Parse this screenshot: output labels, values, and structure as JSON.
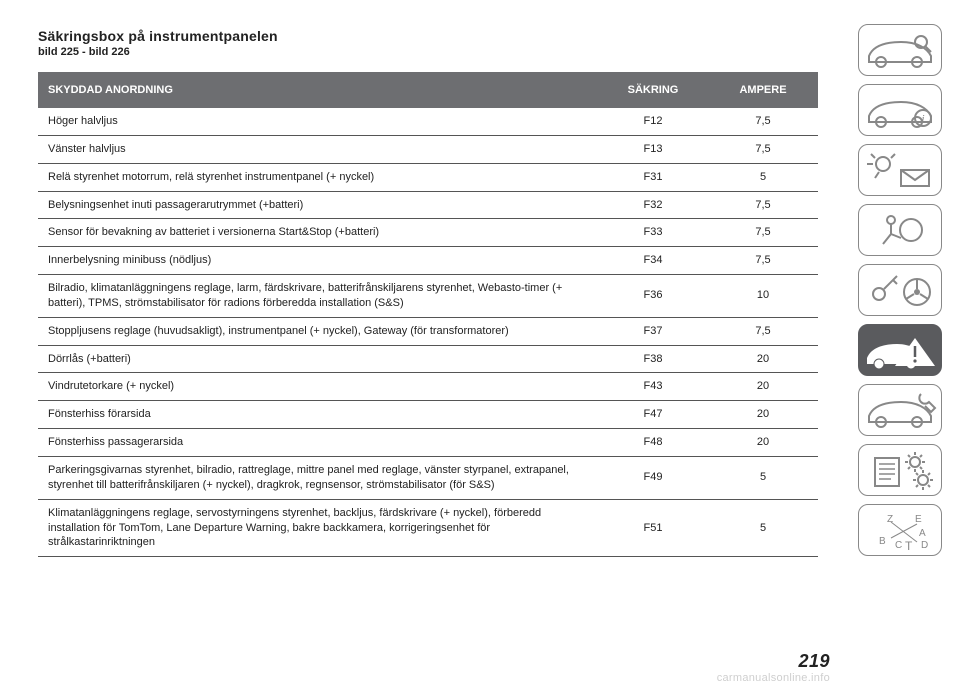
{
  "page": {
    "number": "219",
    "watermark": "carmanualsonline.info"
  },
  "heading": {
    "title": "Säkringsbox på instrumentpanelen",
    "subtitle": "bild 225 - bild 226"
  },
  "table": {
    "header_bg": "#6d6e71",
    "header_fg": "#ffffff",
    "border_color": "#555555",
    "columns": {
      "device": "SKYDDAD ANORDNING",
      "fuse": "SÄKRING",
      "amp": "AMPERE"
    },
    "rows": [
      {
        "device": "Höger halvljus",
        "fuse": "F12",
        "amp": "7,5"
      },
      {
        "device": "Vänster halvljus",
        "fuse": "F13",
        "amp": "7,5"
      },
      {
        "device": "Relä styrenhet motorrum, relä styrenhet instrumentpanel (+ nyckel)",
        "fuse": "F31",
        "amp": "5"
      },
      {
        "device": "Belysningsenhet inuti passagerarutrymmet (+batteri)",
        "fuse": "F32",
        "amp": "7,5"
      },
      {
        "device": "Sensor för bevakning av batteriet i versionerna Start&Stop (+batteri)",
        "fuse": "F33",
        "amp": "7,5"
      },
      {
        "device": "Innerbelysning minibuss (nödljus)",
        "fuse": "F34",
        "amp": "7,5"
      },
      {
        "device": "Bilradio, klimatanläggningens reglage, larm, färdskrivare, batterifrånskiljarens styrenhet, Webasto-timer (+ batteri), TPMS, strömstabilisator för radions förberedda installation (S&S)",
        "fuse": "F36",
        "amp": "10"
      },
      {
        "device": "Stoppljusens reglage (huvudsakligt), instrumentpanel (+ nyckel), Gateway (för transformatorer)",
        "fuse": "F37",
        "amp": "7,5"
      },
      {
        "device": "Dörrlås (+batteri)",
        "fuse": "F38",
        "amp": "20"
      },
      {
        "device": "Vindrutetorkare (+ nyckel)",
        "fuse": "F43",
        "amp": "20"
      },
      {
        "device": "Fönsterhiss förarsida",
        "fuse": "F47",
        "amp": "20"
      },
      {
        "device": "Fönsterhiss passagerarsida",
        "fuse": "F48",
        "amp": "20"
      },
      {
        "device": "Parkeringsgivarnas styrenhet, bilradio, rattreglage, mittre panel med reglage, vänster styrpanel, extrapanel, styrenhet till batterifrånskiljaren (+ nyckel), dragkrok, regnsensor, strömstabilisator (för S&S)",
        "fuse": "F49",
        "amp": "5"
      },
      {
        "device": "Klimatanläggningens reglage, servostyrningens styrenhet, backljus, färdskrivare (+ nyckel), förberedd installation för TomTom, Lane Departure Warning, bakre backkamera, korrigeringsenhet för strålkastarinriktningen",
        "fuse": "F51",
        "amp": "5"
      }
    ]
  },
  "sidebar": {
    "icons": [
      {
        "name": "car-search-icon",
        "active": false
      },
      {
        "name": "car-info-icon",
        "active": false
      },
      {
        "name": "lights-mail-icon",
        "active": false
      },
      {
        "name": "airbag-icon",
        "active": false
      },
      {
        "name": "key-steering-icon",
        "active": false
      },
      {
        "name": "car-warning-icon",
        "active": true
      },
      {
        "name": "car-service-icon",
        "active": false
      },
      {
        "name": "clipboard-gear-icon",
        "active": false
      },
      {
        "name": "compass-letters-icon",
        "active": false
      }
    ],
    "icon_stroke": "#888888",
    "active_bg": "#5a5b5e",
    "active_fg": "#ffffff"
  }
}
